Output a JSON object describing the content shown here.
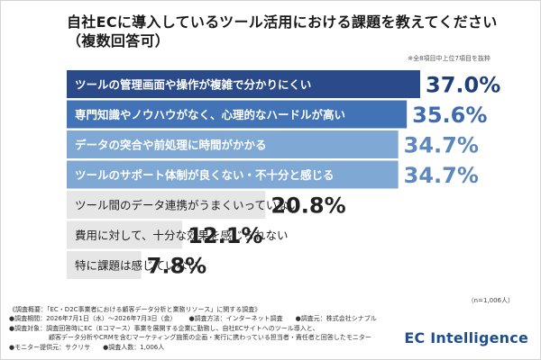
{
  "title": {
    "line1": "自社ECに導入しているツール活用における課題を教えてください",
    "line2": "（複数回答可）"
  },
  "note_top": "※全8項目中上位7項目を抜粋",
  "sample_size": "（n=1,006人）",
  "colors": {
    "bar_dark": "#2b4a8a",
    "bar_mid": "#4173b6",
    "bar_light": "#7fa8d4",
    "bar_gray": "#e6e6e6",
    "value_dark": "#1f3f7a",
    "value_mid": "#3d6ab0",
    "value_light": "#5d88bf",
    "value_gray": "#222222",
    "label_white": "#ffffff",
    "label_dark": "#222222"
  },
  "chart_data": {
    "type": "bar",
    "orientation": "horizontal",
    "categories": [
      "ツールの管理画面や操作が複雑で分かりにくい",
      "専門知識やノウハウがなく、心理的なハードルが高い",
      "データの突合や前処理に時間がかかる",
      "ツールのサポート体制が良くない・不十分と感じる",
      "ツール間のデータ連携がうまくいっていない",
      "費用に対して、十分な効果を感じられない",
      "特に課題は感じていない"
    ],
    "values": [
      37.0,
      35.6,
      34.7,
      34.7,
      20.8,
      12.1,
      7.8
    ],
    "value_labels": [
      "37.0%",
      "35.6%",
      "34.7%",
      "34.7%",
      "20.8%",
      "12.1%",
      "7.8%"
    ],
    "unit": "%",
    "xlim": [
      0,
      37.0
    ],
    "grid": false,
    "legend": "none"
  },
  "footnotes": {
    "line1": "《調査概要：「EC・D2C事業者における顧客データ分析と業務リソース」に関する調査》",
    "period": "●調査期間：2026年7月1日（水）〜2026年7月3日（金）",
    "method": "●調査方法：インターネット調査",
    "operator": "●調査元：株式会社シナブル",
    "target_a": "●調査対象：調査回答時にEC（Eコマース）事業を展開する企業に勤務し、自社ECサイトへのツール導入と、",
    "target_b": "顧客データ分析やCRMを含むマーケティング施策の企画・実行に携わっている担当者・責任者と回答したモニター",
    "monitor": "●モニター提供元：サクリサ",
    "count": "●調査人数：1,006人"
  },
  "logo": "EC Intelligence"
}
